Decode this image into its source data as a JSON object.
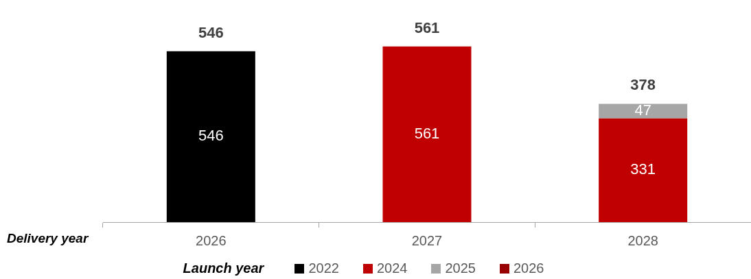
{
  "chart_data": {
    "type": "bar",
    "stacked": true,
    "xlabel": "Delivery year",
    "legend_title": "Launch year",
    "legend": "bottom",
    "categories": [
      "2026",
      "2027",
      "2028"
    ],
    "series": [
      {
        "name": "2022",
        "color": "#000000",
        "values": [
          546,
          null,
          null
        ]
      },
      {
        "name": "2024",
        "color": "#c00000",
        "values": [
          null,
          561,
          331
        ]
      },
      {
        "name": "2025",
        "color": "#a6a6a6",
        "values": [
          null,
          null,
          47
        ]
      },
      {
        "name": "2026",
        "color": "#990000",
        "values": [
          null,
          null,
          null
        ]
      }
    ],
    "data_labels": true,
    "totals": [
      "546",
      "561",
      "378"
    ],
    "grid": false
  }
}
